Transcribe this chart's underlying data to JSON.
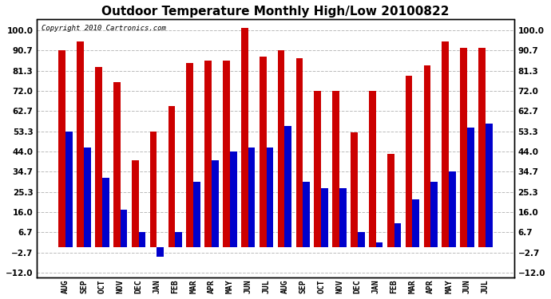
{
  "title": "Outdoor Temperature Monthly High/Low 20100822",
  "copyright": "Copyright 2010 Cartronics.com",
  "months": [
    "AUG",
    "SEP",
    "OCT",
    "NOV",
    "DEC",
    "JAN",
    "FEB",
    "MAR",
    "APR",
    "MAY",
    "JUN",
    "JUL",
    "AUG",
    "SEP",
    "OCT",
    "NOV",
    "DEC",
    "JAN",
    "FEB",
    "MAR",
    "APR",
    "MAY",
    "JUN",
    "JUL"
  ],
  "highs": [
    90.7,
    95.0,
    83.0,
    76.0,
    40.0,
    53.3,
    65.0,
    85.0,
    86.0,
    86.0,
    101.0,
    88.0,
    91.0,
    87.0,
    72.0,
    72.0,
    53.0,
    72.0,
    43.0,
    79.0,
    84.0,
    95.0,
    92.0,
    92.0
  ],
  "lows": [
    53.3,
    46.0,
    32.0,
    17.0,
    6.7,
    -4.5,
    6.7,
    30.0,
    40.0,
    44.0,
    46.0,
    46.0,
    56.0,
    30.0,
    27.0,
    27.0,
    6.7,
    2.0,
    11.0,
    22.0,
    30.0,
    35.0,
    55.0,
    57.0
  ],
  "high_color": "#CC0000",
  "low_color": "#0000CC",
  "background_color": "#ffffff",
  "yticks": [
    100.0,
    90.7,
    81.3,
    72.0,
    62.7,
    53.3,
    44.0,
    34.7,
    25.3,
    16.0,
    6.7,
    -2.7,
    -12.0
  ],
  "ylim": [
    -14.0,
    105.0
  ],
  "bar_width": 0.38,
  "grid_color": "#bbbbbb",
  "title_fontsize": 11,
  "copyright_fontsize": 6.5,
  "tick_fontsize": 7,
  "label_fontsize": 7.5
}
